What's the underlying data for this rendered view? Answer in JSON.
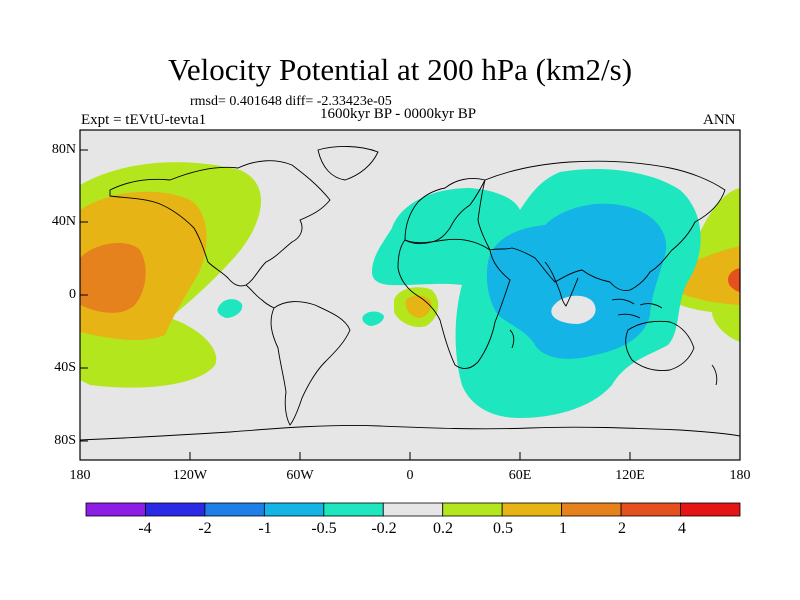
{
  "title": "Velocity Potential at 200 hPa (km2/s)",
  "subtitle": "rmsd= 0.401648 diff= -2.33423e-05",
  "left_label": "Expt = tEVtU-tevta1",
  "center_label": "1600kyr BP - 0000kyr BP",
  "right_label": "ANN",
  "y_ticks": [
    "80N",
    "40N",
    "0",
    "40S",
    "80S"
  ],
  "x_ticks": [
    "180",
    "120W",
    "60W",
    "0",
    "60E",
    "120E",
    "180"
  ],
  "colorbar": {
    "labels": [
      "-4",
      "-2",
      "-1",
      "-0.5",
      "-0.2",
      "0.2",
      "0.5",
      "1",
      "2",
      "4"
    ],
    "colors": [
      "#8c1ee6",
      "#2a2ae6",
      "#1e7fe6",
      "#14b4e6",
      "#1ee6be",
      "#e6e6e6",
      "#b4e61e",
      "#e6b414",
      "#e6821e",
      "#e6501e",
      "#e61414"
    ]
  },
  "colors": {
    "land_sea_neutral": "#e6e6e6",
    "coast": "#000000"
  }
}
